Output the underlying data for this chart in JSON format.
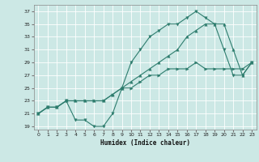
{
  "title": "",
  "xlabel": "Humidex (Indice chaleur)",
  "bg_color": "#cce8e5",
  "grid_color": "#ffffff",
  "line_color": "#2e7d6e",
  "xlim": [
    -0.5,
    23.5
  ],
  "ylim": [
    18.5,
    38
  ],
  "xticks": [
    0,
    1,
    2,
    3,
    4,
    5,
    6,
    7,
    8,
    9,
    10,
    11,
    12,
    13,
    14,
    15,
    16,
    17,
    18,
    19,
    20,
    21,
    22,
    23
  ],
  "yticks": [
    19,
    21,
    23,
    25,
    27,
    29,
    31,
    33,
    35,
    37
  ],
  "line1_x": [
    0,
    1,
    2,
    3,
    4,
    5,
    6,
    7,
    8,
    9,
    10,
    11,
    12,
    13,
    14,
    15,
    16,
    17,
    18,
    19,
    20,
    21,
    22,
    23
  ],
  "line1_y": [
    21,
    22,
    22,
    23,
    20,
    20,
    19,
    19,
    21,
    25,
    29,
    31,
    33,
    34,
    35,
    35,
    36,
    37,
    36,
    35,
    31,
    27,
    27,
    29
  ],
  "line2_x": [
    0,
    1,
    2,
    3,
    4,
    5,
    6,
    7,
    8,
    9,
    10,
    11,
    12,
    13,
    14,
    15,
    16,
    17,
    18,
    19,
    20,
    21,
    22,
    23
  ],
  "line2_y": [
    21,
    22,
    22,
    23,
    23,
    23,
    23,
    23,
    24,
    25,
    25,
    26,
    27,
    27,
    28,
    28,
    28,
    29,
    28,
    28,
    28,
    28,
    28,
    29
  ],
  "line3_x": [
    0,
    1,
    2,
    3,
    4,
    5,
    6,
    7,
    8,
    9,
    10,
    11,
    12,
    13,
    14,
    15,
    16,
    17,
    18,
    19,
    20,
    21,
    22,
    23
  ],
  "line3_y": [
    21,
    22,
    22,
    23,
    23,
    23,
    23,
    23,
    24,
    25,
    26,
    27,
    28,
    29,
    30,
    31,
    33,
    34,
    35,
    35,
    35,
    31,
    27,
    29
  ]
}
